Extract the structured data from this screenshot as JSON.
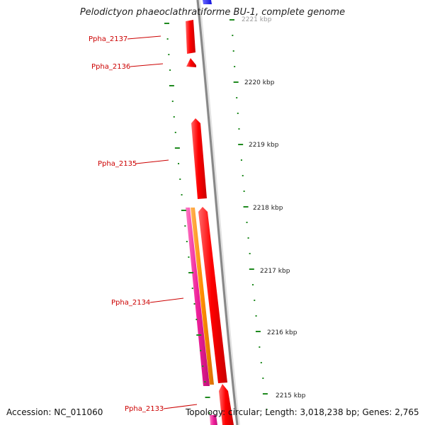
{
  "title": "Pelodictyon phaeoclathratiforme BU-1, complete genome",
  "footer": {
    "accession": "Accession: NC_011060",
    "summary": "Topology: circular; Length: 3,018,238 bp; Genes: 2,765"
  },
  "colors": {
    "cds": "#ff0000",
    "orange": "#ff8c00",
    "magenta": "#ee1f9a",
    "blue": "#1a1aff",
    "backbone": "#888888",
    "tick": "#1f8a1f",
    "label": "#cc0000"
  },
  "ticks": [
    {
      "kbp": 2221,
      "label": "2221 kbp"
    },
    {
      "kbp": 2220,
      "label": "2220 kbp"
    },
    {
      "kbp": 2219,
      "label": "2219 kbp"
    },
    {
      "kbp": 2218,
      "label": "2218 kbp"
    },
    {
      "kbp": 2217,
      "label": "2217 kbp"
    },
    {
      "kbp": 2216,
      "label": "2216 kbp"
    },
    {
      "kbp": 2215,
      "label": "2215 kbp"
    }
  ],
  "genes": [
    {
      "name": "Ppha_2137"
    },
    {
      "name": "Ppha_2136"
    },
    {
      "name": "Ppha_2135"
    },
    {
      "name": "Ppha_2134"
    },
    {
      "name": "Ppha_2133"
    }
  ]
}
